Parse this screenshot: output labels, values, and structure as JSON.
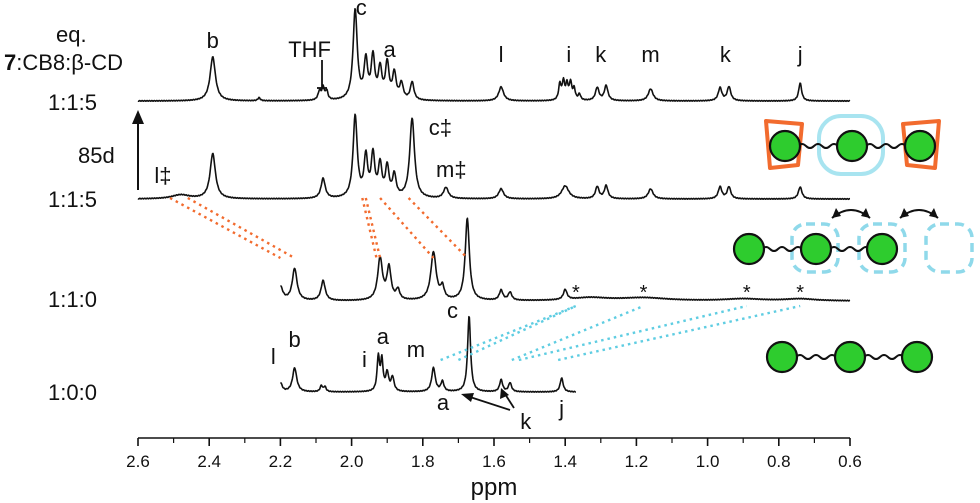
{
  "chart_data": {
    "type": "line",
    "xlabel": "ppm",
    "x_reversed": true,
    "xlim": [
      2.6,
      0.6
    ],
    "xticks": [
      "2.6",
      "2.4",
      "2.2",
      "2.0",
      "1.8",
      "1.6",
      "1.4",
      "1.2",
      "1.0",
      "0.8",
      "0.6"
    ],
    "grid": false,
    "legend_header": {
      "line1": "eq.",
      "compound": "7",
      "rest": ":CB8:β-CD"
    },
    "time_label": "85d",
    "series": [
      {
        "name": "1:1:5",
        "peaks": [
          {
            "ppm": 2.39,
            "h": 44,
            "w": 0.009
          },
          {
            "ppm": 2.26,
            "h": 3,
            "w": 0.004
          },
          {
            "ppm": 2.09,
            "h": 9,
            "w": 0.005
          },
          {
            "ppm": 2.08,
            "h": 12,
            "w": 0.004
          },
          {
            "ppm": 2.07,
            "h": 9,
            "w": 0.004
          },
          {
            "ppm": 1.99,
            "h": 90,
            "w": 0.007
          },
          {
            "ppm": 1.96,
            "h": 38,
            "w": 0.006
          },
          {
            "ppm": 1.94,
            "h": 42,
            "w": 0.006
          },
          {
            "ppm": 1.92,
            "h": 30,
            "w": 0.006
          },
          {
            "ppm": 1.9,
            "h": 36,
            "w": 0.006
          },
          {
            "ppm": 1.88,
            "h": 26,
            "w": 0.006
          },
          {
            "ppm": 1.86,
            "h": 16,
            "w": 0.006
          },
          {
            "ppm": 1.83,
            "h": 18,
            "w": 0.006
          },
          {
            "ppm": 1.58,
            "h": 14,
            "w": 0.008
          },
          {
            "ppm": 1.415,
            "h": 16,
            "w": 0.004
          },
          {
            "ppm": 1.405,
            "h": 18,
            "w": 0.004
          },
          {
            "ppm": 1.395,
            "h": 15,
            "w": 0.004
          },
          {
            "ppm": 1.385,
            "h": 17,
            "w": 0.004
          },
          {
            "ppm": 1.375,
            "h": 11,
            "w": 0.004
          },
          {
            "ppm": 1.36,
            "h": 6,
            "w": 0.004
          },
          {
            "ppm": 1.31,
            "h": 13,
            "w": 0.006
          },
          {
            "ppm": 1.285,
            "h": 15,
            "w": 0.006
          },
          {
            "ppm": 1.16,
            "h": 12,
            "w": 0.008
          },
          {
            "ppm": 0.965,
            "h": 13,
            "w": 0.006
          },
          {
            "ppm": 0.94,
            "h": 14,
            "w": 0.006
          },
          {
            "ppm": 0.74,
            "h": 18,
            "w": 0.005
          }
        ],
        "labels": [
          {
            "text": "b",
            "ppm": 2.39
          },
          {
            "text": "THF",
            "ppm": 2.09
          },
          {
            "text": "c",
            "ppm": 1.99
          },
          {
            "text": "a",
            "ppm": 1.91
          },
          {
            "text": "l",
            "ppm": 1.58
          },
          {
            "text": "i",
            "ppm": 1.39
          },
          {
            "text": "k",
            "ppm": 1.3
          },
          {
            "text": "m",
            "ppm": 1.16
          },
          {
            "text": "k",
            "ppm": 0.95
          },
          {
            "text": "j",
            "ppm": 0.74
          }
        ]
      },
      {
        "name": "1:1:5",
        "peaks": [
          {
            "ppm": 2.48,
            "h": 4,
            "w": 0.03
          },
          {
            "ppm": 2.39,
            "h": 45,
            "w": 0.009
          },
          {
            "ppm": 2.08,
            "h": 20,
            "w": 0.007
          },
          {
            "ppm": 1.99,
            "h": 82,
            "w": 0.007
          },
          {
            "ppm": 1.96,
            "h": 40,
            "w": 0.006
          },
          {
            "ppm": 1.94,
            "h": 42,
            "w": 0.006
          },
          {
            "ppm": 1.92,
            "h": 32,
            "w": 0.006
          },
          {
            "ppm": 1.9,
            "h": 30,
            "w": 0.006
          },
          {
            "ppm": 1.88,
            "h": 22,
            "w": 0.006
          },
          {
            "ppm": 1.83,
            "h": 80,
            "w": 0.008
          },
          {
            "ppm": 1.735,
            "h": 11,
            "w": 0.008
          },
          {
            "ppm": 1.58,
            "h": 10,
            "w": 0.008
          },
          {
            "ppm": 1.4,
            "h": 13,
            "w": 0.012
          },
          {
            "ppm": 1.31,
            "h": 12,
            "w": 0.006
          },
          {
            "ppm": 1.285,
            "h": 13,
            "w": 0.006
          },
          {
            "ppm": 1.16,
            "h": 10,
            "w": 0.008
          },
          {
            "ppm": 0.965,
            "h": 12,
            "w": 0.006
          },
          {
            "ppm": 0.94,
            "h": 12,
            "w": 0.006
          },
          {
            "ppm": 0.74,
            "h": 12,
            "w": 0.006
          }
        ],
        "labels": [
          {
            "text": "l‡",
            "ppm": 2.53
          },
          {
            "text": "c‡",
            "ppm": 1.79
          },
          {
            "text": "m‡",
            "ppm": 1.72
          }
        ]
      },
      {
        "name": "1:1:0",
        "peaks": [
          {
            "ppm": 2.2,
            "h": 14,
            "w": 0.008
          },
          {
            "ppm": 2.16,
            "h": 32,
            "w": 0.008
          },
          {
            "ppm": 2.08,
            "h": 20,
            "w": 0.007
          },
          {
            "ppm": 1.92,
            "h": 42,
            "w": 0.008
          },
          {
            "ppm": 1.895,
            "h": 32,
            "w": 0.007
          },
          {
            "ppm": 1.87,
            "h": 10,
            "w": 0.006
          },
          {
            "ppm": 1.77,
            "h": 48,
            "w": 0.009
          },
          {
            "ppm": 1.745,
            "h": 12,
            "w": 0.006
          },
          {
            "ppm": 1.675,
            "h": 82,
            "w": 0.007
          },
          {
            "ppm": 1.58,
            "h": 10,
            "w": 0.006
          },
          {
            "ppm": 1.555,
            "h": 8,
            "w": 0.006
          },
          {
            "ppm": 1.4,
            "h": 10,
            "w": 0.006
          },
          {
            "ppm": 1.33,
            "h": 3,
            "w": 0.06
          },
          {
            "ppm": 1.18,
            "h": 3,
            "w": 0.08
          },
          {
            "ppm": 0.9,
            "h": 2,
            "w": 0.06
          },
          {
            "ppm": 0.74,
            "h": 2,
            "w": 0.05
          }
        ],
        "stars": [
          1.37,
          1.18,
          0.89,
          0.74
        ]
      },
      {
        "name": "1:0:0",
        "peaks": [
          {
            "ppm": 2.2,
            "h": 9,
            "w": 0.006
          },
          {
            "ppm": 2.16,
            "h": 24,
            "w": 0.007
          },
          {
            "ppm": 2.085,
            "h": 6,
            "w": 0.004
          },
          {
            "ppm": 2.075,
            "h": 5,
            "w": 0.004
          },
          {
            "ppm": 1.925,
            "h": 34,
            "w": 0.004
          },
          {
            "ppm": 1.915,
            "h": 30,
            "w": 0.004
          },
          {
            "ppm": 1.9,
            "h": 18,
            "w": 0.005
          },
          {
            "ppm": 1.885,
            "h": 14,
            "w": 0.005
          },
          {
            "ppm": 1.77,
            "h": 24,
            "w": 0.006
          },
          {
            "ppm": 1.745,
            "h": 10,
            "w": 0.005
          },
          {
            "ppm": 1.67,
            "h": 76,
            "w": 0.005
          },
          {
            "ppm": 1.58,
            "h": 12,
            "w": 0.005
          },
          {
            "ppm": 1.555,
            "h": 9,
            "w": 0.005
          },
          {
            "ppm": 1.41,
            "h": 14,
            "w": 0.005
          }
        ],
        "labels": [
          {
            "text": "l",
            "ppm": 2.22
          },
          {
            "text": "b",
            "ppm": 2.16
          },
          {
            "text": "i",
            "ppm": 1.95
          },
          {
            "text": "a",
            "ppm": 1.915
          },
          {
            "text": "m",
            "ppm": 1.78
          },
          {
            "text": "c",
            "ppm": 1.68
          },
          {
            "text": "a",
            "ppm": 1.76
          },
          {
            "text": "k",
            "ppm": 1.55
          },
          {
            "text": "j",
            "ppm": 1.41
          }
        ]
      }
    ],
    "correlations": [
      {
        "color": "orange",
        "from_series": 2,
        "from_ppm": 2.51,
        "to_series": 3,
        "to_ppm": 2.2
      },
      {
        "color": "orange",
        "from_series": 2,
        "from_ppm": 2.46,
        "to_series": 3,
        "to_ppm": 2.16
      },
      {
        "color": "orange",
        "from_series": 2,
        "from_ppm": 1.97,
        "to_series": 3,
        "to_ppm": 1.93
      },
      {
        "color": "orange",
        "from_series": 2,
        "from_ppm": 1.96,
        "to_series": 3,
        "to_ppm": 1.92
      },
      {
        "color": "orange",
        "from_series": 2,
        "from_ppm": 1.92,
        "to_series": 3,
        "to_ppm": 1.77
      },
      {
        "color": "orange",
        "from_series": 2,
        "from_ppm": 1.84,
        "to_series": 3,
        "to_ppm": 1.675
      },
      {
        "color": "blue",
        "from_series": 4,
        "from_ppm": 1.75,
        "to_series": 3,
        "to_ppm": 1.37
      },
      {
        "color": "blue",
        "from_series": 4,
        "from_ppm": 1.7,
        "to_series": 3,
        "to_ppm": 1.37
      },
      {
        "color": "blue",
        "from_series": 4,
        "from_ppm": 1.55,
        "to_series": 3,
        "to_ppm": 1.18
      },
      {
        "color": "blue",
        "from_series": 4,
        "from_ppm": 1.53,
        "to_series": 3,
        "to_ppm": 0.89
      },
      {
        "color": "blue",
        "from_series": 4,
        "from_ppm": 1.42,
        "to_series": 3,
        "to_ppm": 0.74
      }
    ]
  },
  "colors": {
    "ink": "#111111",
    "orange": "#f26b2e",
    "light_blue": "#5fcde2",
    "bead_green": "#2ecc2e"
  },
  "schematics": [
    {
      "name": "1:1:5 aged",
      "beads": 3,
      "cb8": "orange-both-ends",
      "cd": "solid-center"
    },
    {
      "name": "1:1:0",
      "beads": 3,
      "cd": "dashed-shuttling"
    },
    {
      "name": "1:0:0",
      "beads": 3
    }
  ]
}
